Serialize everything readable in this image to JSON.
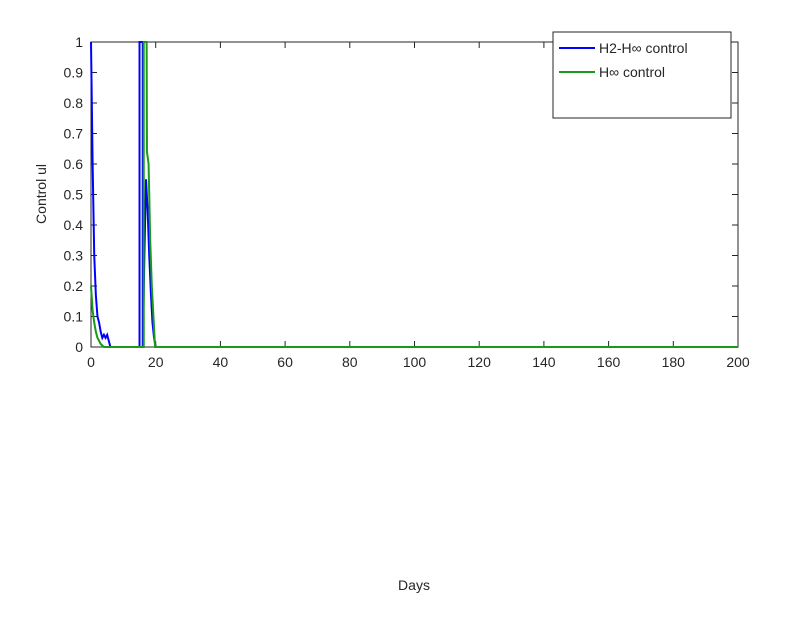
{
  "chart_data": {
    "type": "line",
    "xlabel": "Days",
    "ylabel": "Control ul",
    "xlim": [
      0,
      200
    ],
    "xticks": [
      0,
      20,
      40,
      60,
      80,
      100,
      120,
      140,
      160,
      180,
      200
    ],
    "ylim": [
      0,
      1
    ],
    "yticks": [
      0,
      0.1,
      0.2,
      0.3,
      0.4,
      0.5,
      0.6,
      0.7,
      0.8,
      0.9,
      1
    ],
    "legend": "top-right",
    "grid": false,
    "series": [
      {
        "name": "H2-H∞ control",
        "color": "#0000ff",
        "x": [
          0,
          0.5,
          1,
          1.5,
          2,
          2.5,
          3,
          3.5,
          4,
          4.5,
          5,
          5.5,
          6,
          15,
          15,
          15.5,
          16,
          16,
          16.5,
          17,
          17.5,
          18,
          18.5,
          19,
          19.5,
          20,
          200
        ],
        "values": [
          1,
          0.6,
          0.3,
          0.17,
          0.1,
          0.08,
          0.05,
          0.03,
          0.04,
          0.03,
          0.04,
          0.02,
          0,
          0,
          1,
          1,
          1,
          0,
          0.3,
          0.55,
          0.45,
          0.3,
          0.18,
          0.08,
          0.03,
          0,
          0
        ]
      },
      {
        "name": "H∞ control",
        "color": "#1a9a1a",
        "x": [
          0,
          0.5,
          1,
          1.5,
          2,
          2.5,
          3,
          3.5,
          4,
          16.3,
          16.3,
          17.2,
          17.3,
          17.8,
          18.3,
          18.8,
          19.3,
          19.8,
          200
        ],
        "values": [
          0.2,
          0.12,
          0.08,
          0.05,
          0.03,
          0.02,
          0.01,
          0.005,
          0,
          0,
          1,
          1,
          0.64,
          0.6,
          0.35,
          0.2,
          0.1,
          0,
          0
        ]
      }
    ]
  }
}
